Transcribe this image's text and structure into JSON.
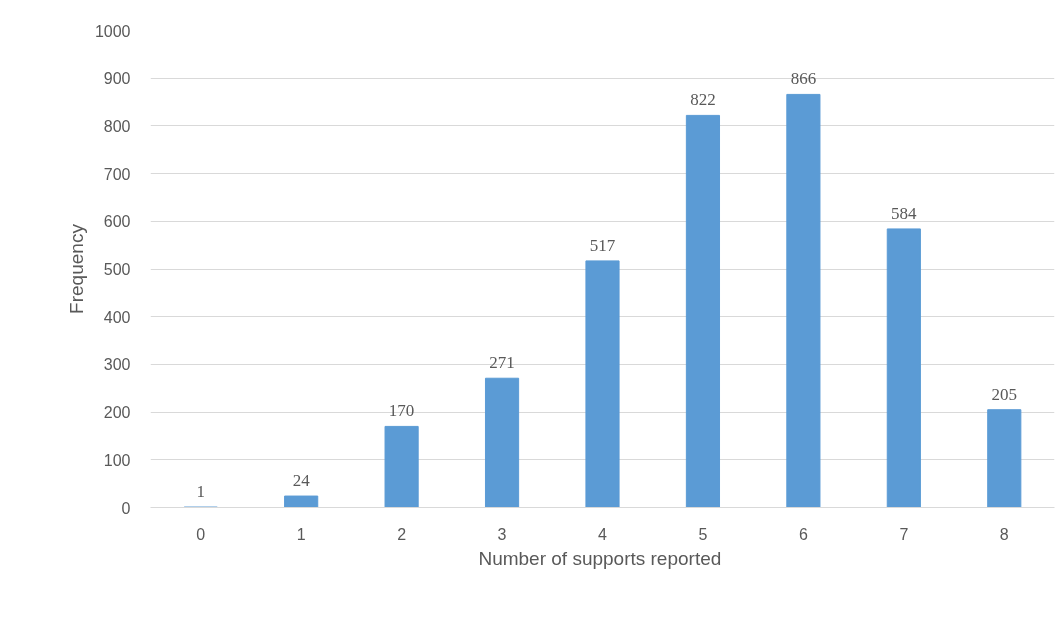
{
  "chart_data": {
    "type": "bar",
    "xlabel": "Number  of supports reported",
    "ylabel": "Frequency",
    "categories": [
      "0",
      "1",
      "2",
      "3",
      "4",
      "5",
      "6",
      "7",
      "8"
    ],
    "values": [
      1,
      24,
      170,
      271,
      517,
      822,
      866,
      584,
      205
    ],
    "color": "#5b9bd5",
    "ylim": [
      0,
      1000
    ],
    "yticks": [
      0,
      100,
      200,
      300,
      400,
      500,
      600,
      700,
      800,
      900,
      1000
    ],
    "grid": "y",
    "data_labels": true
  }
}
